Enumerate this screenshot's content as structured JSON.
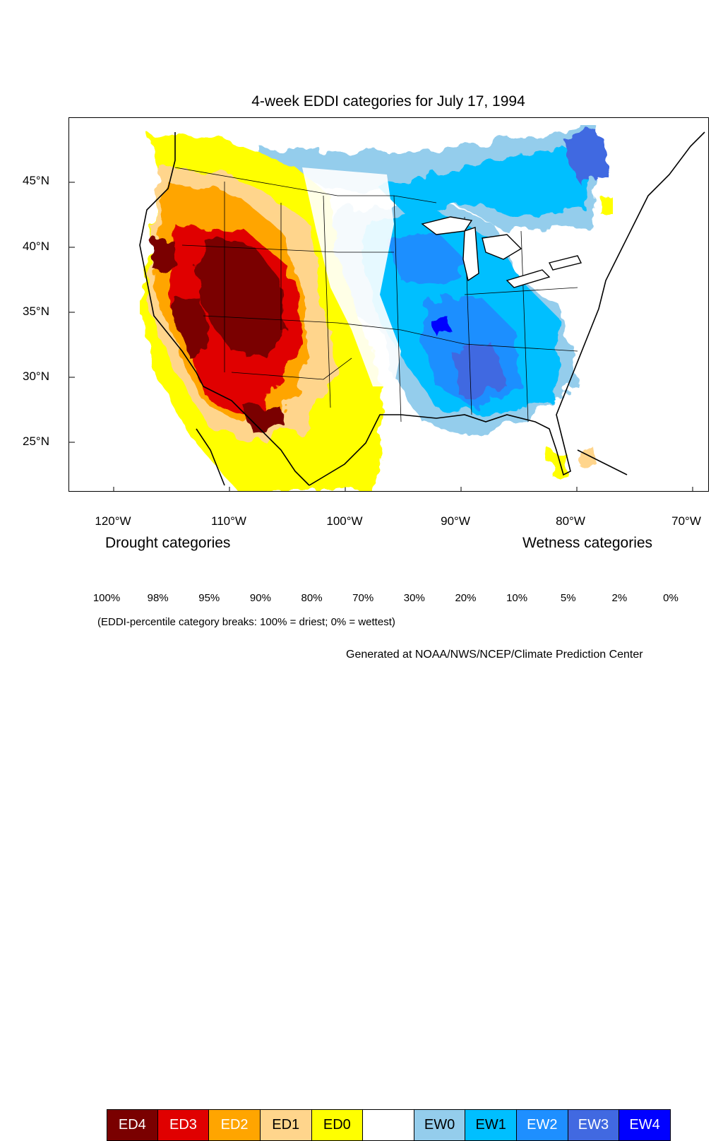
{
  "title": "4-week EDDI categories for July 17, 1994",
  "latitude_labels": [
    "45°N",
    "40°N",
    "35°N",
    "30°N",
    "25°N"
  ],
  "longitude_labels": [
    "120°W",
    "110°W",
    "100°W",
    "90°W",
    "80°W",
    "70°W"
  ],
  "legend": {
    "drought_heading": "Drought categories",
    "wetness_heading": "Wetness categories",
    "categories": [
      {
        "label": "ED4",
        "color": "#7a0000",
        "text_color": "#ffffff"
      },
      {
        "label": "ED3",
        "color": "#e00000",
        "text_color": "#ffffff"
      },
      {
        "label": "ED2",
        "color": "#ffa500",
        "text_color": "#ffffff"
      },
      {
        "label": "ED1",
        "color": "#ffd58c",
        "text_color": "#000000"
      },
      {
        "label": "ED0",
        "color": "#ffff00",
        "text_color": "#000000"
      },
      {
        "label": "",
        "color": "#ffffff",
        "text_color": "#000000"
      },
      {
        "label": "EW0",
        "color": "#94cdec",
        "text_color": "#000000"
      },
      {
        "label": "EW1",
        "color": "#00bfff",
        "text_color": "#000000"
      },
      {
        "label": "EW2",
        "color": "#1e8fff",
        "text_color": "#ffffff"
      },
      {
        "label": "EW3",
        "color": "#4169e1",
        "text_color": "#ffffff"
      },
      {
        "label": "EW4",
        "color": "#0000ff",
        "text_color": "#ffffff"
      }
    ],
    "percent_breaks": [
      "100%",
      "98%",
      "95%",
      "90%",
      "80%",
      "70%",
      "30%",
      "20%",
      "10%",
      "5%",
      "2%",
      "0%"
    ]
  },
  "note": "(EDDI-percentile category breaks: 100% = driest; 0% = wettest)",
  "credit": "Generated at NOAA/NWS/NCEP/Climate Prediction Center"
}
